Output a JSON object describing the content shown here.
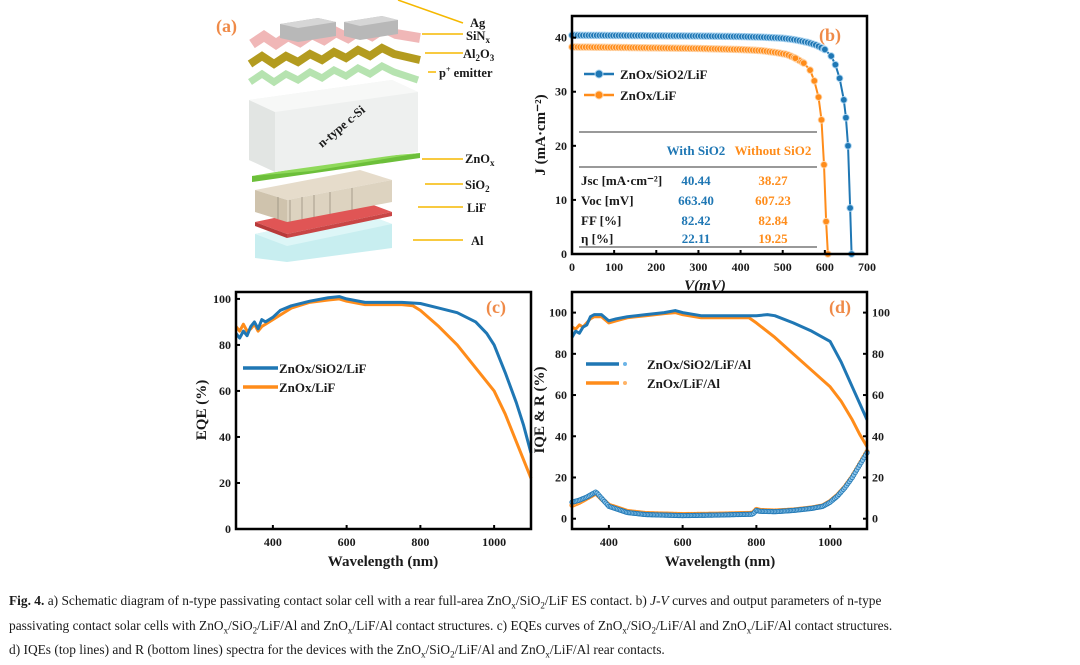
{
  "colors": {
    "blue": "#1f77b4",
    "orange": "#ff8c1a",
    "panel_label": "#ef8a48",
    "axis": "#000000"
  },
  "panel_a": {
    "label": "(a)",
    "layers": [
      {
        "name": "Ag",
        "color": "#b8b8b8"
      },
      {
        "name": "SiNx",
        "color": "#f0b7b7"
      },
      {
        "name": "Al2O3",
        "color": "#b39b1f"
      },
      {
        "name": "p+ emitter",
        "color": "#b6e3b0"
      },
      {
        "name": "n-type c-Si",
        "color": "#eef0ef"
      },
      {
        "name": "ZnOx",
        "color": "#7fcf4a"
      },
      {
        "name": "SiO2",
        "color": "#d8cdb8"
      },
      {
        "name": "LiF",
        "color": "#d94a4a"
      },
      {
        "name": "Al",
        "color": "#c8eef0"
      }
    ],
    "labels": {
      "ag": "Ag",
      "sinx": "SiN",
      "sinx_sub": "x",
      "al2o3_a": "Al",
      "al2o3_s1": "2",
      "al2o3_b": "O",
      "al2o3_s2": "3",
      "emitter_p": "p",
      "emitter_sup": "+",
      "emitter_rest": " emitter",
      "csi": "n-type c-Si",
      "znox": "ZnO",
      "znox_sub": "x",
      "sio2": "SiO",
      "sio2_sub": "2",
      "lif": "LiF",
      "al": "Al"
    }
  },
  "chart_data": [
    {
      "id": "b",
      "type": "line",
      "panel_label": "(b)",
      "xlabel": "V(mV)",
      "ylabel": "J (mA·cm⁻²)",
      "xlim": [
        0,
        700
      ],
      "ylim": [
        0,
        44
      ],
      "xticks": [
        0,
        100,
        200,
        300,
        400,
        500,
        600,
        700
      ],
      "yticks": [
        0,
        10,
        20,
        30,
        40
      ],
      "legend": "upper-left",
      "series": [
        {
          "name": "ZnOx/SiO2/LiF",
          "color": "#1f77b4",
          "marker": "circle",
          "x": [
            0,
            100,
            200,
            300,
            400,
            450,
            500,
            530,
            560,
            580,
            600,
            615,
            625,
            635,
            645,
            650,
            655,
            660,
            663.4
          ],
          "y": [
            40.44,
            40.4,
            40.35,
            40.3,
            40.2,
            40.1,
            39.9,
            39.6,
            39.1,
            38.6,
            37.8,
            36.6,
            35.0,
            32.5,
            28.5,
            25.2,
            20.0,
            8.5,
            0
          ]
        },
        {
          "name": "ZnOx/LiF",
          "color": "#ff8c1a",
          "marker": "circle",
          "x": [
            0,
            100,
            200,
            300,
            400,
            450,
            480,
            510,
            530,
            550,
            565,
            575,
            585,
            592,
            598,
            603,
            607.23
          ],
          "y": [
            38.27,
            38.2,
            38.1,
            38.0,
            37.8,
            37.6,
            37.3,
            36.9,
            36.2,
            35.3,
            34.0,
            32.0,
            29.0,
            24.8,
            16.5,
            6.0,
            0
          ]
        }
      ],
      "table": {
        "header": [
          "",
          "With SiO2",
          "Without SiO2"
        ],
        "rows": [
          {
            "param": "Jsc [mA·cm⁻²]",
            "with": "40.44",
            "without": "38.27"
          },
          {
            "param": "Voc [mV]",
            "with": "663.40",
            "without": "607.23"
          },
          {
            "param": "FF [%]",
            "with": "82.42",
            "without": "82.84"
          },
          {
            "param": "η [%]",
            "with": "22.11",
            "without": "19.25"
          }
        ]
      }
    },
    {
      "id": "c",
      "type": "line",
      "panel_label": "(c)",
      "xlabel": "Wavelength (nm)",
      "ylabel": "EQE (%)",
      "xlim": [
        300,
        1100
      ],
      "ylim": [
        0,
        103
      ],
      "xticks": [
        400,
        600,
        800,
        1000
      ],
      "yticks": [
        0,
        20,
        40,
        60,
        80,
        100
      ],
      "legend": "center-left",
      "series": [
        {
          "name": "ZnOx/SiO2/LiF",
          "color": "#1f77b4",
          "x": [
            300,
            310,
            320,
            330,
            340,
            350,
            360,
            370,
            380,
            400,
            420,
            450,
            500,
            550,
            580,
            600,
            650,
            700,
            750,
            800,
            850,
            900,
            950,
            980,
            1000,
            1030,
            1060,
            1080,
            1100
          ],
          "y": [
            85,
            83,
            86,
            84,
            88,
            90,
            87,
            91,
            90,
            92,
            95,
            97,
            99,
            100.5,
            101,
            100,
            98.5,
            98.5,
            98.5,
            98,
            96,
            94,
            90,
            85,
            80,
            68,
            55,
            45,
            33
          ]
        },
        {
          "name": "ZnOx/LiF",
          "color": "#ff8c1a",
          "x": [
            300,
            310,
            320,
            330,
            340,
            350,
            360,
            370,
            380,
            400,
            420,
            450,
            500,
            550,
            580,
            600,
            650,
            700,
            750,
            780,
            800,
            850,
            900,
            950,
            1000,
            1030,
            1060,
            1080,
            1100
          ],
          "y": [
            88,
            86,
            89,
            86,
            87,
            89,
            86,
            88,
            89,
            91,
            93,
            96,
            98.5,
            99.5,
            100,
            99,
            97.5,
            97.5,
            97.5,
            97,
            95,
            88,
            80,
            70,
            60,
            50,
            38,
            30,
            22
          ]
        }
      ]
    },
    {
      "id": "d",
      "type": "line",
      "panel_label": "(d)",
      "xlabel": "Wavelength (nm)",
      "ylabel": "IQE & R (%)",
      "xlim": [
        300,
        1100
      ],
      "ylim": [
        -5,
        110
      ],
      "xticks": [
        400,
        600,
        800,
        1000
      ],
      "yticks": [
        0,
        20,
        40,
        60,
        80,
        100
      ],
      "y2ticks": [
        0,
        20,
        40,
        60,
        80,
        100
      ],
      "legend": "center-left",
      "series": [
        {
          "name": "ZnOx/SiO2/LiF/Al",
          "kind": "IQE",
          "color": "#1f77b4",
          "x": [
            300,
            310,
            320,
            330,
            340,
            350,
            360,
            380,
            400,
            420,
            450,
            500,
            550,
            580,
            600,
            650,
            700,
            750,
            800,
            830,
            850,
            900,
            950,
            1000,
            1030,
            1060,
            1080,
            1100
          ],
          "y": [
            88,
            91,
            90,
            93,
            94,
            98,
            99,
            99,
            96,
            97,
            98,
            99,
            100,
            101,
            100,
            98.5,
            98.5,
            98.5,
            98.5,
            99,
            98.5,
            95,
            91,
            86,
            76,
            64,
            56,
            48
          ]
        },
        {
          "name": "ZnOx/LiF/Al",
          "kind": "IQE",
          "color": "#ff8c1a",
          "x": [
            300,
            310,
            320,
            330,
            340,
            350,
            360,
            380,
            400,
            420,
            450,
            500,
            550,
            580,
            600,
            650,
            700,
            750,
            780,
            800,
            850,
            900,
            950,
            1000,
            1030,
            1060,
            1080,
            1100
          ],
          "y": [
            93,
            92,
            94,
            93,
            95,
            97,
            98,
            98,
            95,
            96,
            97.5,
            98.5,
            99.5,
            100,
            99,
            97.5,
            97.5,
            97.5,
            97.5,
            95,
            88,
            80,
            72,
            64,
            57,
            48,
            41,
            35
          ]
        },
        {
          "name": "ZnOx/SiO2/LiF/Al R",
          "kind": "R",
          "color": "#1f77b4",
          "x": [
            300,
            320,
            340,
            360,
            365,
            380,
            400,
            450,
            500,
            600,
            700,
            790,
            800,
            810,
            850,
            900,
            950,
            980,
            1000,
            1020,
            1040,
            1060,
            1080,
            1100
          ],
          "y": [
            8,
            9,
            10.5,
            12.5,
            13,
            10,
            6,
            3,
            2,
            1.5,
            1.8,
            2.2,
            4,
            3.6,
            3.4,
            4,
            5,
            6,
            8,
            11,
            15,
            20,
            26,
            32
          ]
        },
        {
          "name": "ZnOx/LiF/Al R",
          "kind": "R",
          "color": "#ff8c1a",
          "x": [
            300,
            320,
            340,
            360,
            365,
            380,
            400,
            450,
            500,
            600,
            700,
            790,
            800,
            810,
            850,
            900,
            950,
            980,
            1000,
            1020,
            1040,
            1060,
            1080,
            1100
          ],
          "y": [
            6.5,
            8,
            10,
            12,
            12.5,
            9.8,
            6.5,
            3.5,
            2.5,
            2,
            2.2,
            2.6,
            4.5,
            4,
            3.7,
            4.2,
            5.2,
            6.2,
            8.3,
            11.3,
            15.3,
            20.3,
            26.3,
            32.5
          ]
        }
      ],
      "legend_entries": [
        "ZnOx/SiO2/LiF/Al",
        "ZnOx/LiF/Al"
      ]
    }
  ],
  "caption": {
    "fig": "Fig. 4.",
    "line1_a": " a) Schematic diagram of n-type passivating contact solar cell with a rear full-area ZnO",
    "line1_b": "/SiO",
    "line1_c": "/LiF ES contact. b) ",
    "line1_jv": "J-V",
    "line1_d": " curves and output parameters of n-type",
    "line2_a": "passivating contact solar cells with ZnO",
    "line2_b": "/SiO",
    "line2_c": "/LiF/Al and ZnO",
    "line2_d": "/LiF/Al contact structures. c) EQEs curves of ZnO",
    "line2_e": "/SiO",
    "line2_f": "/LiF/Al and ZnO",
    "line2_g": "/LiF/Al contact structures.",
    "line3_a": "d) IQEs (top lines) and R (bottom lines) spectra for the devices with the ZnO",
    "line3_b": "/SiO",
    "line3_c": "/LiF/Al and ZnO",
    "line3_d": "/LiF/Al rear contacts.",
    "sub_x": "x",
    "sub_2": "2"
  }
}
